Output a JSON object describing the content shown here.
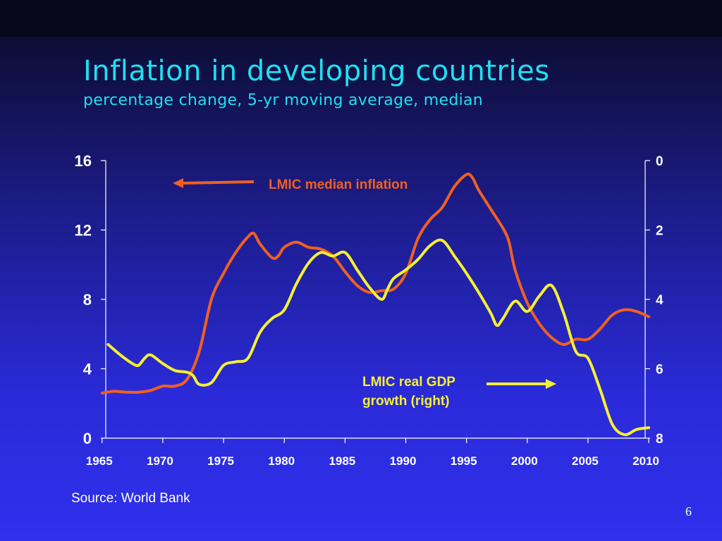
{
  "title": "Inflation in developing countries",
  "subtitle": "percentage change, 5-yr moving average, median",
  "source": "Source: World Bank",
  "page_number": "6",
  "colors": {
    "title": "#1ee0f0",
    "inflation_line": "#f06020",
    "gdp_line": "#f5f032",
    "axis": "#ffffff"
  },
  "annotations": {
    "inflation_label": "LMIC median inflation",
    "gdp_label_line1": "LMIC real GDP",
    "gdp_label_line2": "growth (right)"
  },
  "chart_data": {
    "type": "line",
    "x_ticks": [
      "1965",
      "1970",
      "1975",
      "1980",
      "1985",
      "1990",
      "1995",
      "2000",
      "2005",
      "2010"
    ],
    "y_left_ticks": [
      "0",
      "4",
      "8",
      "12",
      "16"
    ],
    "y_right_ticks": [
      "0",
      "2",
      "4",
      "6",
      "8"
    ],
    "y_left_range": [
      0,
      16
    ],
    "y_right_range": [
      8,
      0
    ],
    "y_right_inverted": true,
    "x_range": [
      1965,
      2010
    ],
    "grid": false,
    "series": [
      {
        "name": "LMIC median inflation",
        "axis": "left",
        "points": [
          [
            1965,
            2.6
          ],
          [
            1966,
            2.7
          ],
          [
            1967,
            2.65
          ],
          [
            1968,
            2.65
          ],
          [
            1969,
            2.75
          ],
          [
            1970,
            3.0
          ],
          [
            1971,
            3.0
          ],
          [
            1972,
            3.4
          ],
          [
            1973,
            5.0
          ],
          [
            1974,
            8.0
          ],
          [
            1975,
            9.5
          ],
          [
            1976,
            10.7
          ],
          [
            1977,
            11.6
          ],
          [
            1977.5,
            11.8
          ],
          [
            1978,
            11.2
          ],
          [
            1979,
            10.4
          ],
          [
            1979.5,
            10.5
          ],
          [
            1980,
            11.0
          ],
          [
            1981,
            11.3
          ],
          [
            1982,
            11.0
          ],
          [
            1983,
            10.9
          ],
          [
            1984,
            10.5
          ],
          [
            1985,
            9.6
          ],
          [
            1986,
            8.8
          ],
          [
            1987,
            8.4
          ],
          [
            1988,
            8.5
          ],
          [
            1989,
            8.6
          ],
          [
            1990,
            9.5
          ],
          [
            1991,
            11.5
          ],
          [
            1992,
            12.6
          ],
          [
            1993,
            13.3
          ],
          [
            1994,
            14.5
          ],
          [
            1995,
            15.2
          ],
          [
            1995.5,
            15.0
          ],
          [
            1996,
            14.3
          ],
          [
            1997,
            13.2
          ],
          [
            1998,
            12.1
          ],
          [
            1998.5,
            11.3
          ],
          [
            1999,
            9.7
          ],
          [
            2000,
            7.8
          ],
          [
            2001,
            6.6
          ],
          [
            2002,
            5.8
          ],
          [
            2003,
            5.4
          ],
          [
            2004,
            5.7
          ],
          [
            2005,
            5.7
          ],
          [
            2006,
            6.3
          ],
          [
            2007,
            7.1
          ],
          [
            2008,
            7.4
          ],
          [
            2009,
            7.3
          ],
          [
            2010,
            7.0
          ]
        ]
      },
      {
        "name": "LMIC real GDP growth (right)",
        "axis": "right",
        "points": [
          [
            1965.5,
            5.3
          ],
          [
            1966.5,
            5.6
          ],
          [
            1967.5,
            5.85
          ],
          [
            1968,
            5.9
          ],
          [
            1968.5,
            5.7
          ],
          [
            1969,
            5.6
          ],
          [
            1970,
            5.85
          ],
          [
            1971,
            6.05
          ],
          [
            1972,
            6.1
          ],
          [
            1972.5,
            6.2
          ],
          [
            1973,
            6.45
          ],
          [
            1974,
            6.4
          ],
          [
            1975,
            5.9
          ],
          [
            1976,
            5.8
          ],
          [
            1977,
            5.7
          ],
          [
            1978,
            4.95
          ],
          [
            1979,
            4.55
          ],
          [
            1980,
            4.3
          ],
          [
            1981,
            3.55
          ],
          [
            1982,
            2.95
          ],
          [
            1983,
            2.65
          ],
          [
            1984,
            2.75
          ],
          [
            1985,
            2.65
          ],
          [
            1986,
            3.15
          ],
          [
            1987,
            3.65
          ],
          [
            1988,
            4.0
          ],
          [
            1988.5,
            3.7
          ],
          [
            1989,
            3.4
          ],
          [
            1990,
            3.15
          ],
          [
            1991,
            2.85
          ],
          [
            1992,
            2.45
          ],
          [
            1993,
            2.3
          ],
          [
            1994,
            2.75
          ],
          [
            1995,
            3.25
          ],
          [
            1996,
            3.8
          ],
          [
            1997,
            4.4
          ],
          [
            1997.5,
            4.75
          ],
          [
            1998,
            4.55
          ],
          [
            1999,
            4.05
          ],
          [
            2000,
            4.35
          ],
          [
            2001,
            3.9
          ],
          [
            2002,
            3.6
          ],
          [
            2003,
            4.4
          ],
          [
            2004,
            5.5
          ],
          [
            2005,
            5.7
          ],
          [
            2006,
            6.6
          ],
          [
            2007,
            7.6
          ],
          [
            2008,
            7.9
          ],
          [
            2009,
            7.75
          ],
          [
            2010,
            7.7
          ]
        ]
      }
    ]
  }
}
